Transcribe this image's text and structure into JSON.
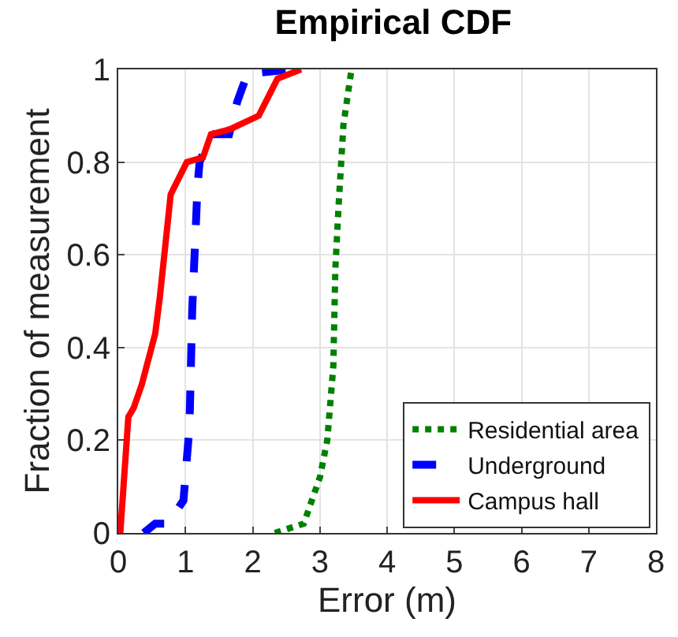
{
  "chart_data": {
    "type": "line",
    "title": "Empirical CDF",
    "xlabel": "Error (m)",
    "ylabel": "Fraction of measurement",
    "xlim": [
      0,
      8
    ],
    "xticks": [
      0,
      1,
      2,
      3,
      4,
      5,
      6,
      7,
      8
    ],
    "ylim": [
      0,
      1
    ],
    "yticks": [
      0,
      0.2,
      0.4,
      0.6,
      0.8,
      1
    ],
    "grid": true,
    "legend": "bottom right",
    "series": [
      {
        "name": "Residential area",
        "color": "#008000",
        "line_style": "dotted",
        "x": [
          2.33,
          2.76,
          3.0,
          3.11,
          3.2,
          3.23,
          3.28,
          3.35,
          3.47
        ],
        "values": [
          0,
          0.02,
          0.12,
          0.2,
          0.36,
          0.57,
          0.71,
          0.88,
          1.0
        ]
      },
      {
        "name": "Underground",
        "color": "#0000ff",
        "line_style": "dashed",
        "x": [
          0.38,
          0.55,
          0.74,
          0.97,
          1.06,
          1.1,
          1.18,
          1.21,
          1.38,
          1.65,
          1.77,
          1.92,
          2.57
        ],
        "values": [
          0,
          0.02,
          0.02,
          0.07,
          0.23,
          0.48,
          0.75,
          0.8,
          0.86,
          0.86,
          0.93,
          0.99,
          1.0
        ]
      },
      {
        "name": "Campus hall",
        "color": "#ff0000",
        "line_style": "solid",
        "x": [
          0.03,
          0.15,
          0.23,
          0.35,
          0.55,
          0.62,
          0.78,
          1.02,
          1.26,
          1.38,
          1.65,
          2.09,
          2.37,
          2.72
        ],
        "values": [
          0,
          0.25,
          0.27,
          0.32,
          0.43,
          0.51,
          0.73,
          0.8,
          0.81,
          0.86,
          0.87,
          0.9,
          0.98,
          1.0
        ]
      }
    ]
  }
}
